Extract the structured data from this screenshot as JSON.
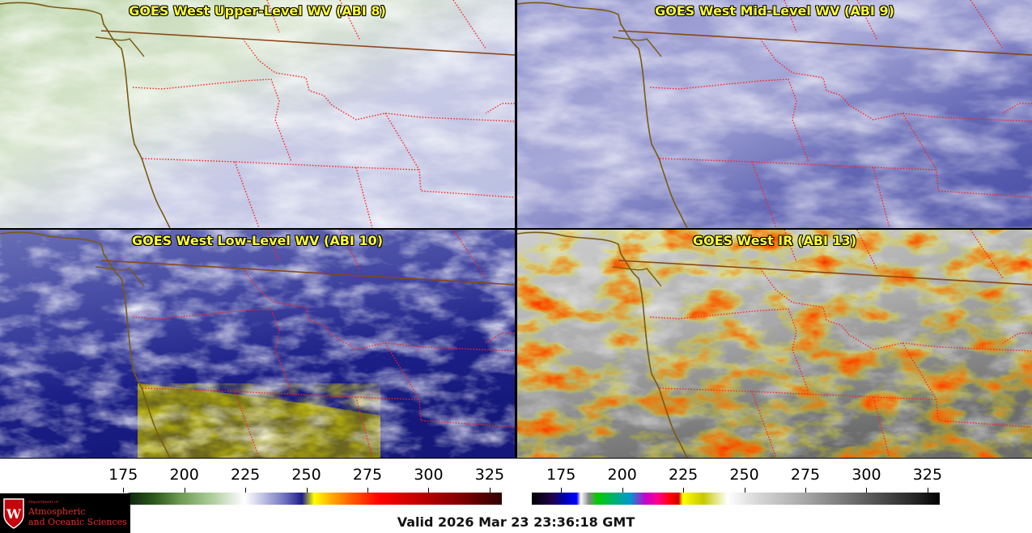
{
  "panels": [
    {
      "title": "GOES West Upper-Level WV (ABI 8)",
      "palette": "green-purple"
    },
    {
      "title": "GOES West Mid-Level WV (ABI 9)",
      "palette": "purple"
    },
    {
      "title": "GOES West Low-Level WV (ABI 10)",
      "palette": "blue-yellow"
    },
    {
      "title": "GOES West IR (ABI 13)",
      "palette": "ir-enhanced"
    }
  ],
  "colorbars": {
    "wv": {
      "ticks": [
        "175",
        "200",
        "225",
        "250",
        "275",
        "300",
        "325"
      ]
    },
    "ir": {
      "ticks": [
        "175",
        "200",
        "225",
        "250",
        "275",
        "300",
        "325"
      ]
    }
  },
  "valid_time": "Valid 2026 Mar 23 23:36:18 GMT",
  "logo": {
    "small": "Department of",
    "line1": "Atmospheric",
    "line2": "and Oceanic Sciences",
    "seal_letter": "W"
  },
  "colors": {
    "border_country": "#8b4513",
    "border_state": "#ff2020",
    "coast": "#7a5a10",
    "title_text": "#ffff33"
  }
}
